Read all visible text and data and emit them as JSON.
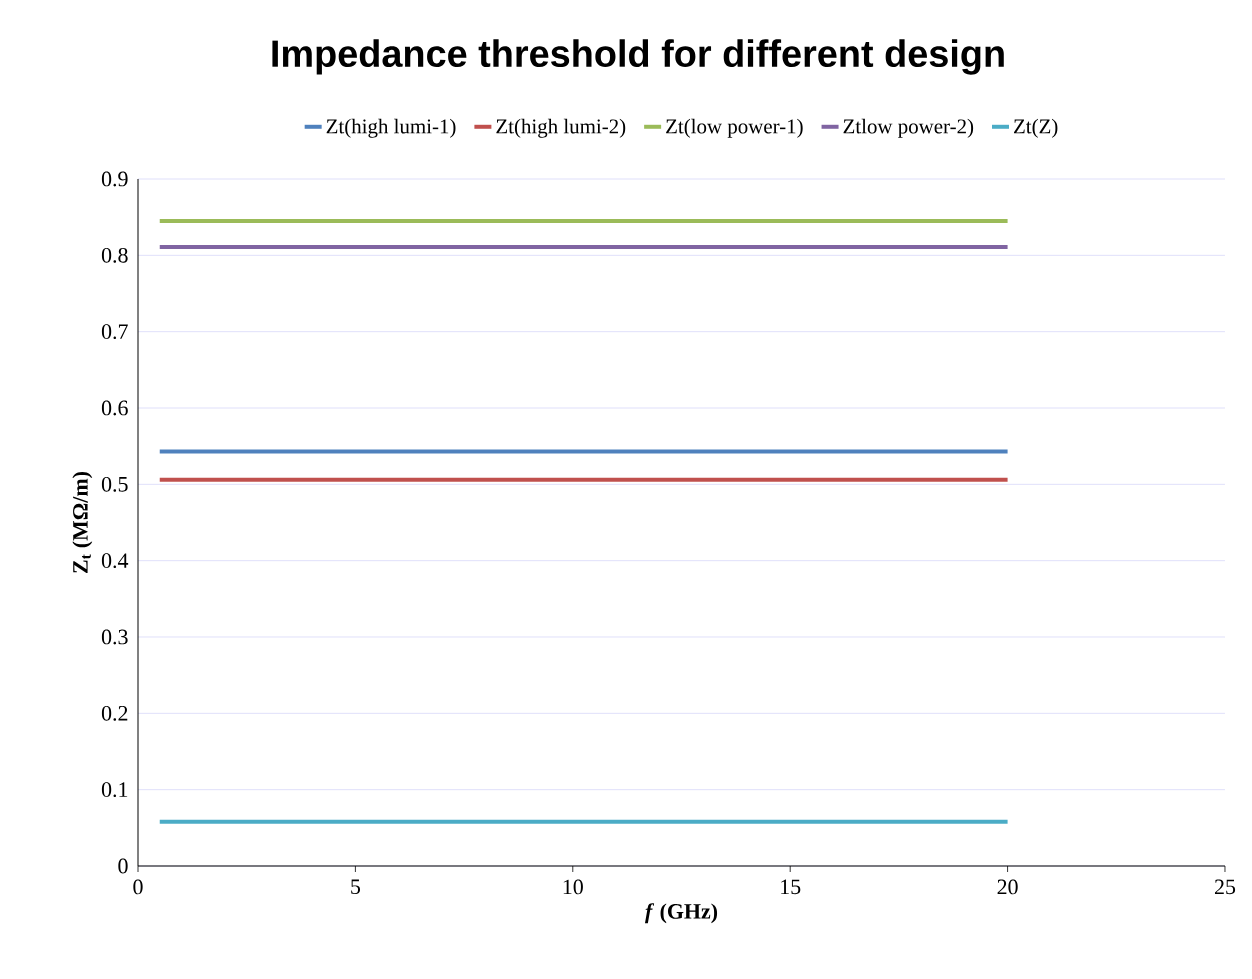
{
  "chart_data": {
    "type": "line",
    "title": "Impedance threshold for different design",
    "xlabel": "*f* (GHz)",
    "ylabel": "Z$_{t}$ (MΩ/m)",
    "x": [
      0.5,
      20
    ],
    "series": [
      {
        "name": "Zt(high lumi-1)",
        "color": "#4f81bd",
        "values": [
          0.543,
          0.543
        ]
      },
      {
        "name": "Zt(high lumi-2)",
        "color": "#c0504d",
        "values": [
          0.506,
          0.506
        ]
      },
      {
        "name": "Zt(low power-1)",
        "color": "#9bbb59",
        "values": [
          0.845,
          0.845
        ]
      },
      {
        "name": "Ztlow power-2)",
        "color": "#8064a2",
        "values": [
          0.811,
          0.811
        ]
      },
      {
        "name": "Zt(Z)",
        "color": "#4bacc6",
        "values": [
          0.058,
          0.058
        ]
      }
    ],
    "xlim": [
      0,
      25
    ],
    "xticks": [
      0,
      5,
      10,
      15,
      20,
      25
    ],
    "ylim": [
      0,
      0.9
    ],
    "yticks": [
      0,
      0.1,
      0.2,
      0.3,
      0.4,
      0.5,
      0.6,
      0.7,
      0.8,
      0.9
    ],
    "grid": "y",
    "legend": "top",
    "marker": "none",
    "line_style": "solid"
  }
}
